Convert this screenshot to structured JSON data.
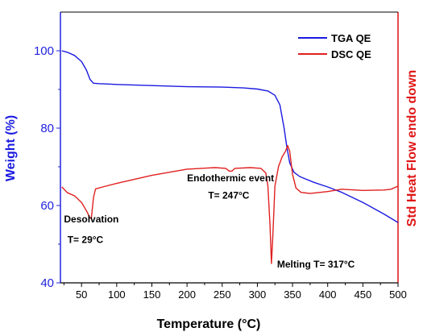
{
  "chart_data": {
    "type": "line",
    "xlabel": "Temperature (°C)",
    "ylabel": "Weight (%)",
    "y2label": "Std Heat Flow endo down",
    "xlim": [
      20,
      500
    ],
    "ylim": [
      40,
      110
    ],
    "x_ticks": [
      50,
      100,
      150,
      200,
      250,
      300,
      350,
      400,
      450,
      500
    ],
    "y_ticks": [
      40,
      60,
      80,
      100
    ],
    "grid": false,
    "legend_position": "top-right",
    "colors": {
      "tga": "#1a1ae0",
      "dsc": "#e02020",
      "y_axis_left": "#2222dd",
      "y_axis_right": "#dd1111"
    },
    "series": [
      {
        "name": "TGA QE",
        "axis": "left",
        "points": [
          [
            22,
            100
          ],
          [
            30,
            99.6
          ],
          [
            40,
            98.8
          ],
          [
            50,
            97.2
          ],
          [
            57,
            95
          ],
          [
            62,
            92.6
          ],
          [
            67,
            91.6
          ],
          [
            75,
            91.5
          ],
          [
            100,
            91.3
          ],
          [
            150,
            91
          ],
          [
            200,
            90.7
          ],
          [
            250,
            90.6
          ],
          [
            280,
            90.4
          ],
          [
            300,
            90.1
          ],
          [
            315,
            89.6
          ],
          [
            325,
            88.5
          ],
          [
            332,
            86
          ],
          [
            338,
            80
          ],
          [
            342,
            75
          ],
          [
            346,
            71
          ],
          [
            352,
            68.6
          ],
          [
            360,
            67.5
          ],
          [
            380,
            66
          ],
          [
            400,
            64.8
          ],
          [
            420,
            63.4
          ],
          [
            450,
            60.8
          ],
          [
            480,
            57.8
          ],
          [
            500,
            55.6
          ]
        ]
      },
      {
        "name": "DSC QE",
        "axis": "right",
        "points": [
          [
            22,
            64.8
          ],
          [
            30,
            63.3
          ],
          [
            40,
            62.5
          ],
          [
            50,
            60.8
          ],
          [
            58,
            58.3
          ],
          [
            62,
            56.7
          ],
          [
            64,
            56.8
          ],
          [
            67,
            62
          ],
          [
            70,
            64.3
          ],
          [
            80,
            64.8
          ],
          [
            100,
            65.7
          ],
          [
            150,
            67.8
          ],
          [
            200,
            69.4
          ],
          [
            240,
            69.8
          ],
          [
            255,
            69.6
          ],
          [
            260,
            68.9
          ],
          [
            264,
            68.9
          ],
          [
            268,
            69.6
          ],
          [
            290,
            69.8
          ],
          [
            305,
            69.6
          ],
          [
            312,
            68.4
          ],
          [
            315,
            65
          ],
          [
            318,
            55
          ],
          [
            320,
            45
          ],
          [
            322,
            52
          ],
          [
            325,
            65
          ],
          [
            330,
            70
          ],
          [
            335,
            72.5
          ],
          [
            340,
            74
          ],
          [
            343,
            75.5
          ],
          [
            346,
            74
          ],
          [
            350,
            68
          ],
          [
            355,
            64.5
          ],
          [
            362,
            63.4
          ],
          [
            375,
            63.1
          ],
          [
            400,
            63.6
          ],
          [
            420,
            64.2
          ],
          [
            450,
            63.9
          ],
          [
            480,
            64
          ],
          [
            490,
            64.2
          ],
          [
            500,
            65
          ]
        ]
      }
    ],
    "annotations": [
      {
        "text": "Desolvation",
        "x": 25,
        "y": 55.6
      },
      {
        "text": "T= 29°C",
        "x": 30,
        "y": 50.3
      },
      {
        "text": "Endothermic event",
        "x": 200,
        "y": 66.3
      },
      {
        "text": "T= 247°C",
        "x": 230,
        "y": 61.8
      },
      {
        "text": "Melting T= 317°C",
        "x": 328,
        "y": 44
      }
    ]
  }
}
